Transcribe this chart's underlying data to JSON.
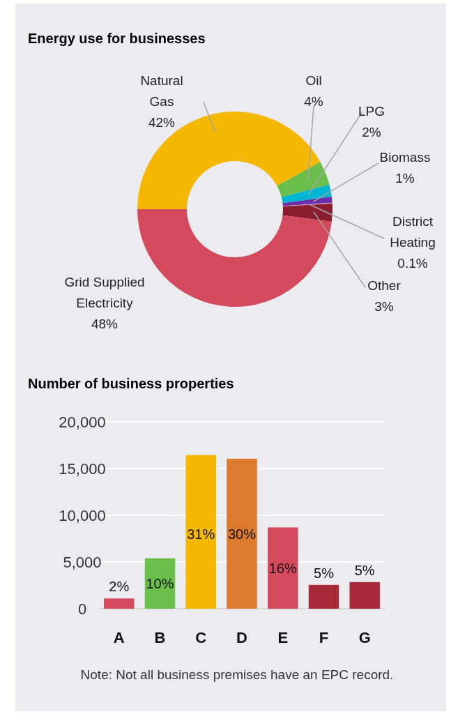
{
  "chart_data": [
    {
      "type": "donut",
      "title": "Energy use for businesses",
      "categories": [
        "Natural Gas",
        "Oil",
        "LPG",
        "Biomass",
        "District Heating",
        "Other",
        "Grid Supplied Electricity"
      ],
      "values": [
        42,
        4,
        2,
        1,
        0.1,
        3,
        48
      ],
      "colors": [
        "#f4b800",
        "#6abf4b",
        "#00b5d1",
        "#6a2fa8",
        "#e8b8e0",
        "#8b1e2e",
        "#d4495c"
      ],
      "value_labels": [
        "42%",
        "4%",
        "2%",
        "1%",
        "0.1%",
        "3%",
        "48%"
      ]
    },
    {
      "type": "bar",
      "title": "Number of business properties",
      "categories": [
        "A",
        "B",
        "C",
        "D",
        "E",
        "F",
        "G"
      ],
      "values": [
        1100,
        5400,
        16450,
        16050,
        8700,
        2550,
        2850
      ],
      "colors": [
        "#d4495c",
        "#6abf4b",
        "#f4b800",
        "#dd7a2e",
        "#d4495c",
        "#a82a3a",
        "#a82a3a"
      ],
      "ylim": [
        0,
        20000
      ],
      "yticks": [
        0,
        {
          "value": 5000,
          "label": "5,000"
        },
        {
          "value": 10000,
          "label": "10,000"
        },
        {
          "value": 15000,
          "label": "15,000"
        },
        {
          "value": 20000,
          "label": "20,000"
        }
      ],
      "grid": "y",
      "annotations": [
        "2%",
        "10%",
        "31%",
        "30%",
        "16%",
        "5%",
        "5%",
        "Note: Not all business premises have an EPC record."
      ]
    }
  ]
}
